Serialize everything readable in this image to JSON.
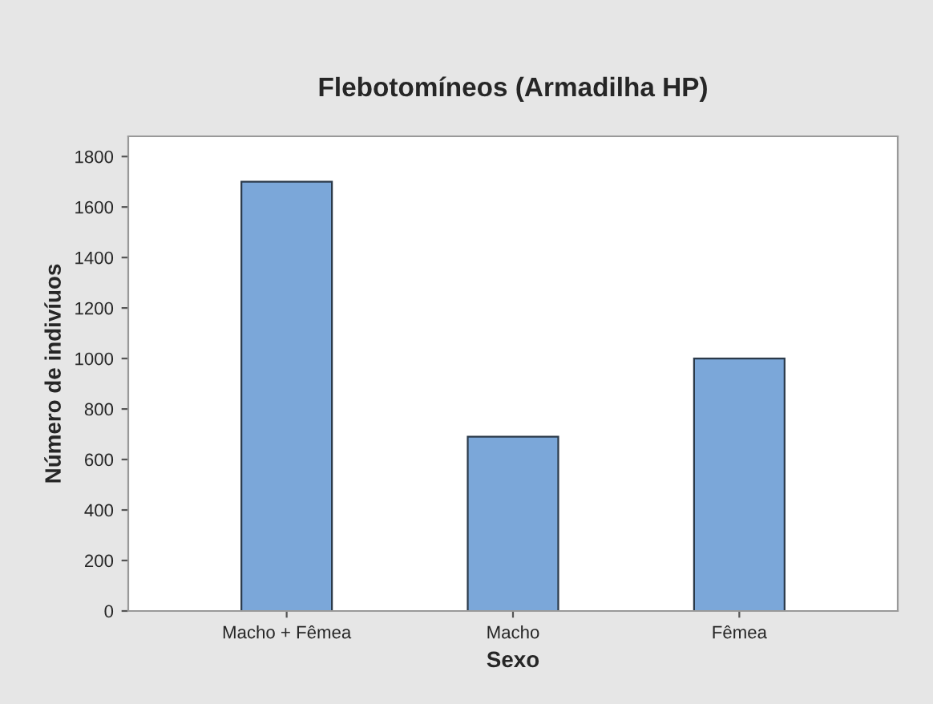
{
  "chart_data": {
    "type": "bar",
    "title": "Flebotomíneos (Armadilha HP)",
    "xlabel": "Sexo",
    "ylabel": "Número de indivíuos",
    "categories": [
      "Macho + Fêmea",
      "Macho",
      "Fêmea"
    ],
    "values": [
      1700,
      690,
      1000
    ],
    "color": "#7ba7d9",
    "ylim": [
      0,
      1880
    ],
    "yticks": [
      0,
      200,
      400,
      600,
      800,
      1000,
      1200,
      1400,
      1600,
      1800
    ],
    "grid": false,
    "legend": false
  }
}
